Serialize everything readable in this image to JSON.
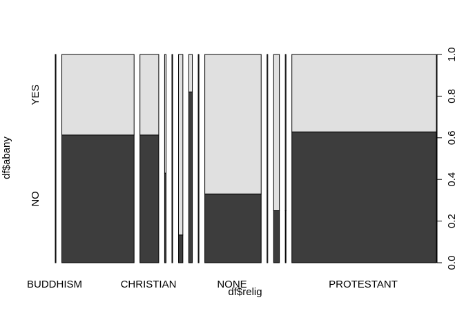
{
  "chart_data": {
    "type": "spineplot",
    "xlabel": "df$relig",
    "ylabel": "df$abany",
    "y_categories": [
      "NO",
      "YES"
    ],
    "y_axis_right": {
      "ticks": [
        "0.0",
        "0.2",
        "0.4",
        "0.6",
        "0.8",
        "1.0"
      ],
      "range": [
        0,
        1
      ]
    },
    "x_tick_labels": [
      "BUDDHISM",
      "CHRISTIAN",
      "NONE",
      "PROTESTANT"
    ],
    "columns": [
      {
        "share": 0.002,
        "no_fraction": 0.0
      },
      {
        "share": 0.2,
        "no_fraction": 0.613
      },
      {
        "share": 0.052,
        "no_fraction": 0.613
      },
      {
        "share": 0.004,
        "no_fraction": 0.43
      },
      {
        "share": 0.002,
        "no_fraction": 0.0
      },
      {
        "share": 0.012,
        "no_fraction": 0.133
      },
      {
        "share": 0.01,
        "no_fraction": 0.82
      },
      {
        "share": 0.002,
        "no_fraction": 0.0
      },
      {
        "share": 0.156,
        "no_fraction": 0.33
      },
      {
        "share": 0.002,
        "no_fraction": 0.0
      },
      {
        "share": 0.016,
        "no_fraction": 0.25
      },
      {
        "share": 0.002,
        "no_fraction": 0.25
      },
      {
        "share": 0.4,
        "no_fraction": 0.628
      }
    ],
    "colors": {
      "no": "#3d3d3d",
      "yes": "#e0e0e0",
      "border": "#000000"
    }
  }
}
